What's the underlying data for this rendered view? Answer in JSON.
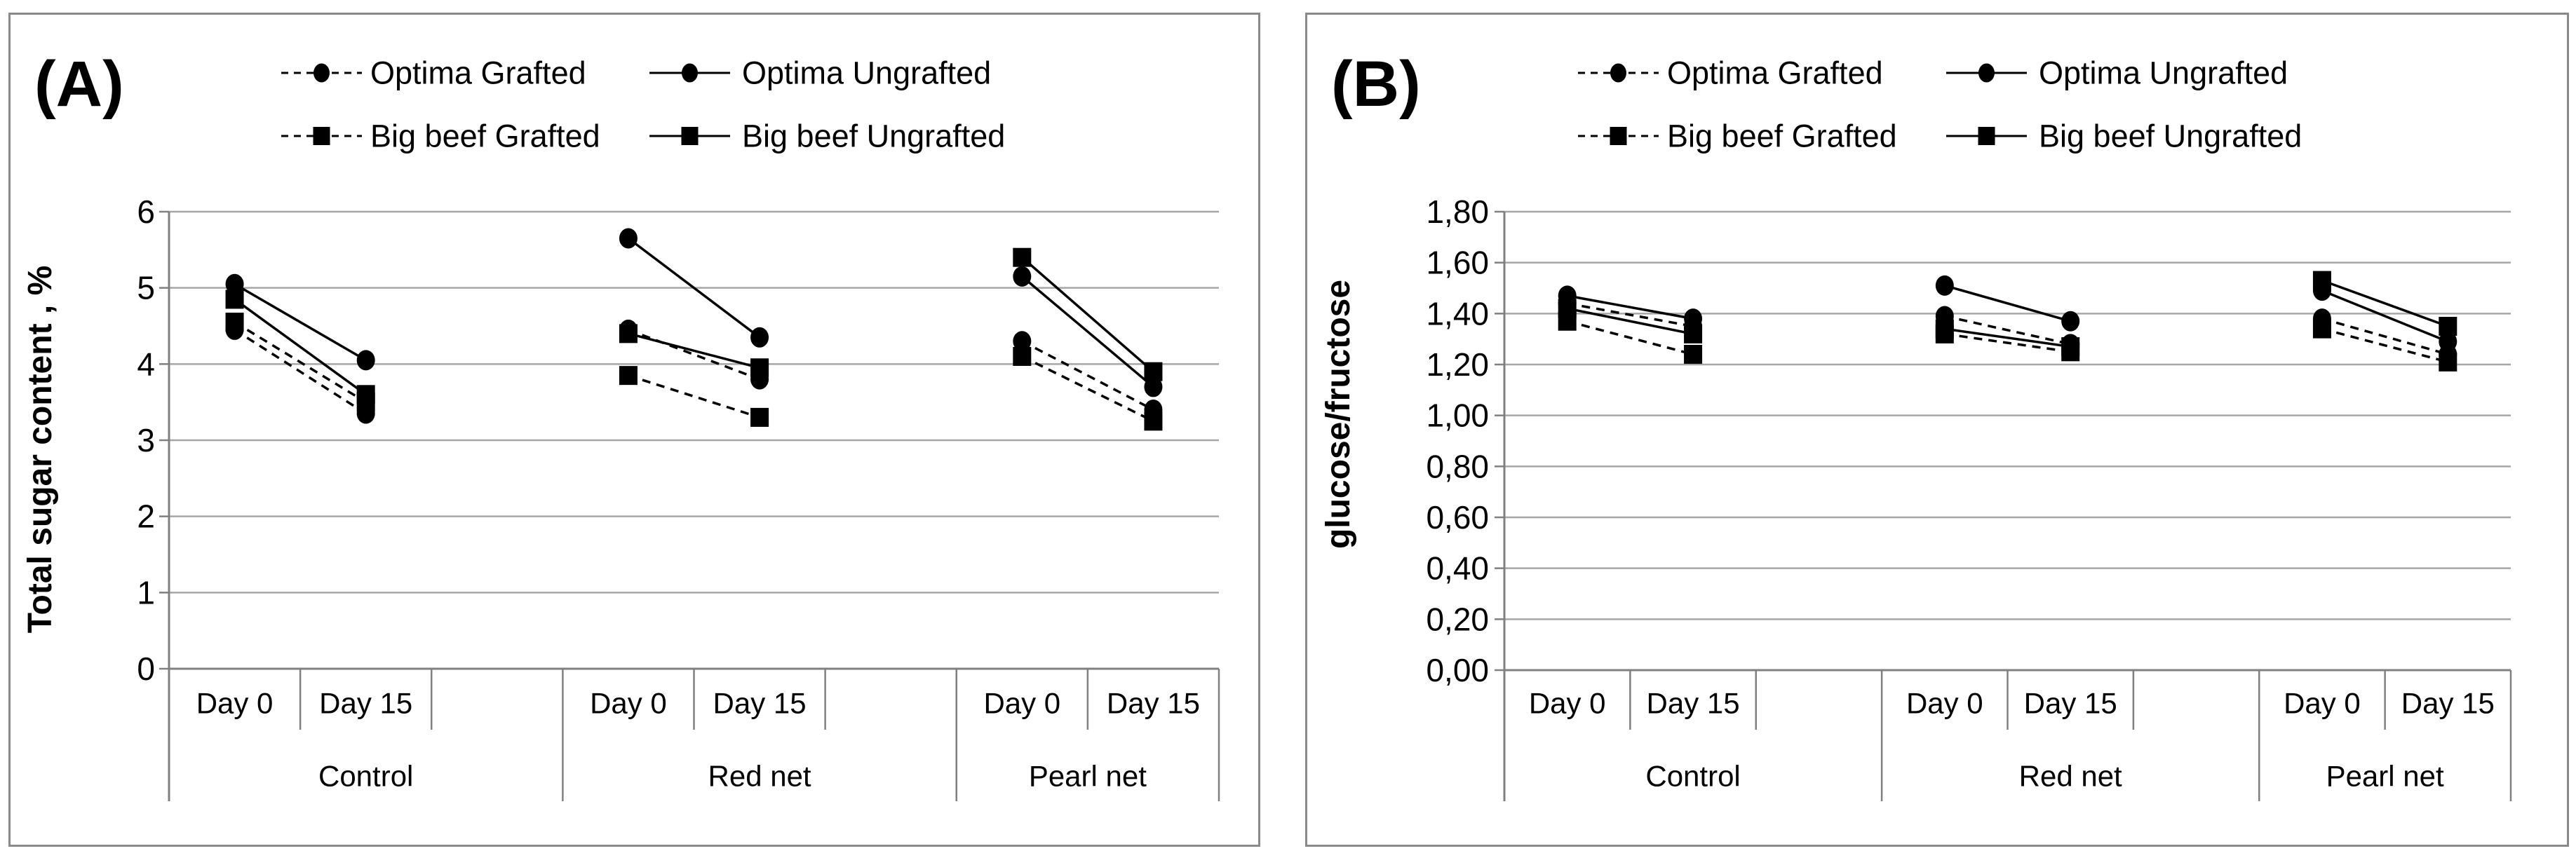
{
  "figure": {
    "background": "#ffffff",
    "panel_border_color": "#8a8a8a",
    "grid_color": "#a6a6a6",
    "axis_color": "#808080",
    "series_color": "#000000",
    "text_color": "#000000"
  },
  "chart_data": [
    {
      "type": "line",
      "panel_label": "(A)",
      "title": "",
      "xlabel": "",
      "ylabel": "Total sugar content , %",
      "ylim": [
        0,
        6
      ],
      "ytick_labels": [
        "6",
        "5",
        "4",
        "3",
        "2",
        "1",
        "0"
      ],
      "grid": "horizontal",
      "legend_position": "top",
      "groups": [
        "Control",
        "Red net",
        "Pearl net"
      ],
      "x_categories": [
        "Day 0",
        "Day 15"
      ],
      "series": [
        {
          "name": "Optima Grafted",
          "marker": "circle",
          "line": "dashed",
          "values": [
            [
              4.45,
              3.35
            ],
            [
              4.45,
              3.8
            ],
            [
              4.3,
              3.4
            ]
          ]
        },
        {
          "name": "Optima Ungrafted",
          "marker": "circle",
          "line": "solid",
          "values": [
            [
              5.05,
              4.05
            ],
            [
              5.65,
              4.35
            ],
            [
              5.15,
              3.7
            ]
          ]
        },
        {
          "name": "Big beef Grafted",
          "marker": "square",
          "line": "dashed",
          "values": [
            [
              4.55,
              3.5
            ],
            [
              3.85,
              3.3
            ],
            [
              4.1,
              3.25
            ]
          ]
        },
        {
          "name": "Big beef Ungrafted",
          "marker": "square",
          "line": "solid",
          "values": [
            [
              4.85,
              3.6
            ],
            [
              4.4,
              3.95
            ],
            [
              5.4,
              3.9
            ]
          ]
        }
      ]
    },
    {
      "type": "line",
      "panel_label": "(B)",
      "title": "",
      "xlabel": "",
      "ylabel": "glucose/fructose",
      "ylim": [
        0,
        1.8
      ],
      "ytick_labels": [
        "1,80",
        "1,60",
        "1,40",
        "1,20",
        "1,00",
        "0,80",
        "0,60",
        "0,40",
        "0,20",
        "0,00"
      ],
      "grid": "horizontal",
      "legend_position": "top",
      "groups": [
        "Control",
        "Red net",
        "Pearl net"
      ],
      "x_categories": [
        "Day 0",
        "Day 15"
      ],
      "series": [
        {
          "name": "Optima Grafted",
          "marker": "circle",
          "line": "dashed",
          "values": [
            [
              1.44,
              1.35
            ],
            [
              1.39,
              1.28
            ],
            [
              1.38,
              1.24
            ]
          ]
        },
        {
          "name": "Optima Ungrafted",
          "marker": "circle",
          "line": "solid",
          "values": [
            [
              1.47,
              1.38
            ],
            [
              1.51,
              1.37
            ],
            [
              1.49,
              1.29
            ]
          ]
        },
        {
          "name": "Big beef Grafted",
          "marker": "square",
          "line": "dashed",
          "values": [
            [
              1.37,
              1.24
            ],
            [
              1.32,
              1.25
            ],
            [
              1.34,
              1.21
            ]
          ]
        },
        {
          "name": "Big beef Ungrafted",
          "marker": "square",
          "line": "solid",
          "values": [
            [
              1.42,
              1.32
            ],
            [
              1.34,
              1.27
            ],
            [
              1.53,
              1.35
            ]
          ]
        }
      ]
    }
  ]
}
